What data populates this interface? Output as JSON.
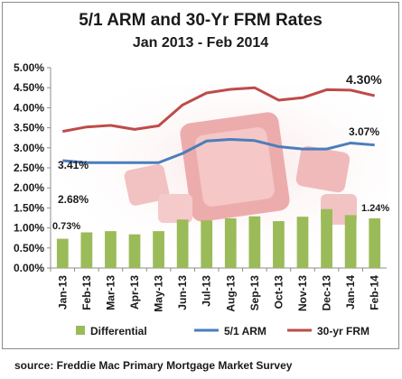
{
  "chart_data": {
    "type": "bar+line",
    "title": "5/1 ARM and 30-Yr FRM Rates",
    "subtitle": "Jan 2013 - Feb 2014",
    "categories": [
      "Jan-13",
      "Feb-13",
      "Mar-13",
      "Apr-13",
      "May-13",
      "Jun-13",
      "Jul-13",
      "Aug-13",
      "Sep-13",
      "Oct-13",
      "Nov-13",
      "Dec-13",
      "Jan-14",
      "Feb-14"
    ],
    "ylim": [
      0,
      5
    ],
    "yticks": [
      "0.00%",
      "0.50%",
      "1.00%",
      "1.50%",
      "2.00%",
      "2.50%",
      "3.00%",
      "3.50%",
      "4.00%",
      "4.50%",
      "5.00%"
    ],
    "grid": false,
    "legend_position": "bottom",
    "series": [
      {
        "name": "Differential",
        "kind": "bar",
        "color": "#9bbb59",
        "values": [
          0.73,
          0.89,
          0.92,
          0.84,
          0.92,
          1.21,
          1.19,
          1.24,
          1.29,
          1.17,
          1.28,
          1.47,
          1.32,
          1.24
        ]
      },
      {
        "name": "5/1 ARM",
        "kind": "line",
        "color": "#4a7ebb",
        "values": [
          2.68,
          2.63,
          2.63,
          2.63,
          2.63,
          2.86,
          3.17,
          3.21,
          3.18,
          3.03,
          2.97,
          2.97,
          3.12,
          3.07
        ]
      },
      {
        "name": "30-yr FRM",
        "kind": "line",
        "color": "#be4b48",
        "values": [
          3.41,
          3.52,
          3.56,
          3.46,
          3.55,
          4.07,
          4.37,
          4.46,
          4.5,
          4.19,
          4.25,
          4.45,
          4.44,
          4.3
        ]
      }
    ],
    "annotations": [
      "3.41%",
      "2.68%",
      "0.73%",
      "4.30%",
      "3.07%",
      "1.24%"
    ]
  },
  "footer": {
    "source": "source: Freddie Mac Primary Mortgage Market Survey"
  }
}
